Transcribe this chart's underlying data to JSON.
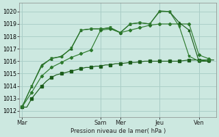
{
  "bg_color": "#cce8e0",
  "grid_color": "#aacfc8",
  "line_color1": "#1a5c1a",
  "line_color2": "#2d7a2d",
  "xlabel_text": "Pression niveau de la mer( hPa )",
  "ylim": [
    1011.5,
    1020.7
  ],
  "yticks": [
    1012,
    1013,
    1014,
    1015,
    1016,
    1017,
    1018,
    1019,
    1020
  ],
  "day_labels": [
    "Mar",
    "Sam",
    "Mer",
    "Jeu",
    "Ven"
  ],
  "day_x": [
    0,
    16,
    20,
    28,
    36
  ],
  "total_points": 40,
  "series1_x": [
    0,
    1,
    2,
    3,
    4,
    5,
    6,
    7,
    8,
    9,
    10,
    11,
    12,
    13,
    14,
    15,
    16,
    17,
    18,
    19,
    20,
    21,
    22,
    23,
    24,
    25,
    26,
    27,
    28,
    29,
    30,
    31,
    32,
    33,
    34,
    35,
    36,
    37,
    38,
    39
  ],
  "series1_y": [
    1012.3,
    1012.3,
    1013.0,
    1013.5,
    1014.0,
    1014.4,
    1014.7,
    1014.9,
    1015.0,
    1015.1,
    1015.2,
    1015.3,
    1015.4,
    1015.5,
    1015.5,
    1015.6,
    1015.6,
    1015.7,
    1015.7,
    1015.8,
    1015.8,
    1015.85,
    1015.9,
    1015.9,
    1015.95,
    1016.0,
    1016.0,
    1016.0,
    1016.0,
    1016.0,
    1016.0,
    1016.0,
    1016.0,
    1016.05,
    1016.1,
    1016.1,
    1016.1,
    1016.1,
    1016.1,
    1016.1
  ],
  "series2_x": [
    0,
    2,
    4,
    6,
    8,
    10,
    12,
    14,
    16,
    18,
    20,
    22,
    24,
    26,
    28,
    30,
    32,
    34,
    36,
    38
  ],
  "series2_y": [
    1012.3,
    1013.5,
    1014.8,
    1015.5,
    1015.9,
    1016.3,
    1016.6,
    1016.9,
    1018.5,
    1018.6,
    1018.3,
    1018.5,
    1018.7,
    1018.9,
    1019.0,
    1019.0,
    1019.0,
    1019.0,
    1016.5,
    1016.2
  ],
  "series3_x": [
    0,
    2,
    4,
    6,
    8,
    10,
    12,
    14,
    16,
    18,
    20,
    22,
    24,
    26,
    28,
    30,
    32,
    34,
    36,
    38
  ],
  "series3_y": [
    1012.3,
    1014.0,
    1015.7,
    1016.2,
    1016.4,
    1017.0,
    1018.5,
    1018.6,
    1018.6,
    1018.7,
    1018.3,
    1019.0,
    1019.1,
    1019.0,
    1020.05,
    1020.0,
    1019.1,
    1018.5,
    1016.0,
    1016.0
  ],
  "series4_x": [
    0,
    2,
    4,
    6,
    8,
    10,
    12,
    14,
    16,
    18,
    20,
    22,
    24,
    26,
    28,
    30,
    32,
    34,
    36,
    38
  ],
  "series4_y": [
    1012.3,
    1014.0,
    1015.6,
    1016.25,
    1016.35,
    1017.05,
    1018.5,
    1018.6,
    1018.6,
    1018.7,
    1018.3,
    1019.0,
    1019.1,
    1019.0,
    1020.0,
    1020.0,
    1018.8,
    1016.4,
    1016.0,
    1016.1
  ]
}
